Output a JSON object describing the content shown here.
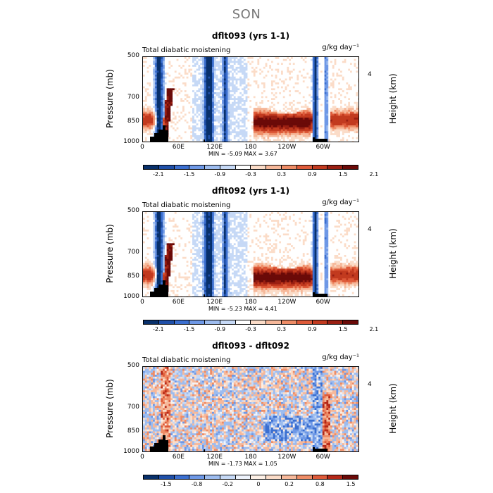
{
  "suptitle": "SON",
  "panels": [
    {
      "title": "dflt093 (yrs 1-1)",
      "left_label": "Total diabatic moistening",
      "units": "g/kg day⁻¹",
      "ylabel": "Pressure (mb)",
      "ylabel_right": "Height (km)",
      "y_ticks": [
        "500",
        "700",
        "850",
        "1000"
      ],
      "y_right_ticks": [
        "4"
      ],
      "x_ticks": [
        "0",
        "60E",
        "120E",
        "180",
        "120W",
        "60W"
      ],
      "minmax_text": "MIN =   -5.09   MAX =    3.67",
      "colorbar_labels": [
        "-2.1",
        "-1.5",
        "-0.9",
        "-0.3",
        "0.3",
        "0.9",
        "1.5",
        "2.1"
      ],
      "variant": "full"
    },
    {
      "title": "dflt092 (yrs 1-1)",
      "left_label": "Total diabatic moistening",
      "units": "g/kg day⁻¹",
      "ylabel": "Pressure (mb)",
      "ylabel_right": "Height (km)",
      "y_ticks": [
        "500",
        "700",
        "850",
        "1000"
      ],
      "y_right_ticks": [
        "4"
      ],
      "x_ticks": [
        "0",
        "60E",
        "120E",
        "180",
        "120W",
        "60W"
      ],
      "minmax_text": "MIN =   -5.23   MAX =    4.41",
      "colorbar_labels": [
        "-2.1",
        "-1.5",
        "-0.9",
        "-0.3",
        "0.3",
        "0.9",
        "1.5",
        "2.1"
      ],
      "variant": "full"
    },
    {
      "title": "dflt093 - dflt092",
      "left_label": "Total diabatic moistening",
      "units": "g/kg day⁻¹",
      "ylabel": "Pressure (mb)",
      "ylabel_right": "Height (km)",
      "y_ticks": [
        "500",
        "700",
        "850",
        "1000"
      ],
      "y_right_ticks": [
        "4"
      ],
      "x_ticks": [
        "0",
        "60E",
        "120E",
        "180",
        "120W",
        "60W"
      ],
      "minmax_text": "MIN =   -1.73   MAX =    1.05",
      "colorbar_labels": [
        "-1.5",
        "-0.8",
        "-0.2",
        "0",
        "0.2",
        "0.8",
        "1.5"
      ],
      "variant": "diff"
    }
  ],
  "colors": {
    "full_scale": [
      "#08306b",
      "#1f4fa8",
      "#3b6fd0",
      "#6e98e6",
      "#9dbcef",
      "#c6d9f6",
      "#ffffff",
      "#fbdcc8",
      "#f6b89a",
      "#ee8c66",
      "#de5a39",
      "#c23a1f",
      "#9a1f12",
      "#6b0a08"
    ],
    "diff_scale": [
      "#08306b",
      "#1f4fa8",
      "#3b6fd0",
      "#6e98e6",
      "#9dbcef",
      "#c6d9f6",
      "#eef3fc",
      "#fdf0e6",
      "#fbdcc8",
      "#f6b89a",
      "#ee8c66",
      "#de5a39",
      "#b42818",
      "#6b0a08"
    ],
    "topography": "#000000"
  },
  "chart_data": [
    {
      "type": "heatmap",
      "title": "dflt093 (yrs 1-1)",
      "xlabel": "",
      "ylabel": "Pressure (mb)",
      "x_categories": [
        "0",
        "60E",
        "120E",
        "180",
        "120W",
        "60W"
      ],
      "xlim": [
        0,
        360
      ],
      "ylim": [
        1000,
        500
      ],
      "y_scale": "log",
      "colorbar_levels": [
        -2.1,
        -1.5,
        -0.9,
        -0.3,
        0.3,
        0.9,
        1.5,
        2.1
      ],
      "min": -5.09,
      "max": 3.67,
      "units": "g/kg day⁻¹"
    },
    {
      "type": "heatmap",
      "title": "dflt092 (yrs 1-1)",
      "xlabel": "",
      "ylabel": "Pressure (mb)",
      "x_categories": [
        "0",
        "60E",
        "120E",
        "180",
        "120W",
        "60W"
      ],
      "xlim": [
        0,
        360
      ],
      "ylim": [
        1000,
        500
      ],
      "y_scale": "log",
      "colorbar_levels": [
        -2.1,
        -1.5,
        -0.9,
        -0.3,
        0.3,
        0.9,
        1.5,
        2.1
      ],
      "min": -5.23,
      "max": 4.41,
      "units": "g/kg day⁻¹"
    },
    {
      "type": "heatmap",
      "title": "dflt093 - dflt092",
      "xlabel": "",
      "ylabel": "Pressure (mb)",
      "x_categories": [
        "0",
        "60E",
        "120E",
        "180",
        "120W",
        "60W"
      ],
      "xlim": [
        0,
        360
      ],
      "ylim": [
        1000,
        500
      ],
      "y_scale": "log",
      "colorbar_levels": [
        -1.5,
        -0.8,
        -0.2,
        0,
        0.2,
        0.8,
        1.5
      ],
      "min": -1.73,
      "max": 1.05,
      "units": "g/kg day⁻¹"
    }
  ]
}
